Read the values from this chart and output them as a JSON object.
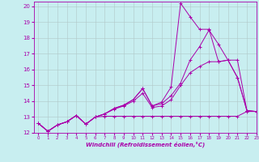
{
  "xlabel": "Windchill (Refroidissement éolien,°C)",
  "xlim": [
    -0.5,
    23
  ],
  "ylim": [
    12,
    20.3
  ],
  "xticks": [
    0,
    1,
    2,
    3,
    4,
    5,
    6,
    7,
    8,
    9,
    10,
    11,
    12,
    13,
    14,
    15,
    16,
    17,
    18,
    19,
    20,
    21,
    22,
    23
  ],
  "yticks": [
    12,
    13,
    14,
    15,
    16,
    17,
    18,
    19,
    20
  ],
  "background_color": "#c8eef0",
  "grid_color": "#b0c8c8",
  "line_color": "#aa00aa",
  "lines": [
    {
      "x": [
        0,
        1,
        2,
        3,
        4,
        5,
        6,
        7,
        8,
        9,
        10,
        11,
        12,
        13,
        14,
        15,
        16,
        17,
        18,
        19,
        20,
        21,
        22,
        23
      ],
      "y": [
        12.6,
        12.1,
        12.5,
        12.7,
        13.1,
        12.55,
        13.0,
        13.05,
        13.05,
        13.05,
        13.05,
        13.05,
        13.05,
        13.05,
        13.05,
        13.05,
        13.05,
        13.05,
        13.05,
        13.05,
        13.05,
        13.05,
        13.35,
        13.35
      ]
    },
    {
      "x": [
        0,
        1,
        2,
        3,
        4,
        5,
        6,
        7,
        8,
        9,
        10,
        11,
        12,
        13,
        14,
        15,
        16,
        17,
        18,
        19,
        20,
        21,
        22,
        23
      ],
      "y": [
        12.6,
        12.1,
        12.5,
        12.7,
        13.1,
        12.55,
        13.0,
        13.2,
        13.5,
        13.7,
        14.0,
        14.5,
        13.6,
        13.7,
        14.1,
        15.0,
        15.8,
        16.2,
        16.5,
        16.5,
        16.6,
        16.6,
        13.4,
        13.35
      ]
    },
    {
      "x": [
        0,
        1,
        2,
        3,
        4,
        5,
        6,
        7,
        8,
        9,
        10,
        11,
        12,
        13,
        14,
        15,
        16,
        17,
        18,
        19,
        20,
        21,
        22,
        23
      ],
      "y": [
        12.6,
        12.1,
        12.5,
        12.7,
        13.1,
        12.55,
        13.0,
        13.2,
        13.55,
        13.75,
        14.1,
        14.8,
        13.7,
        13.85,
        14.35,
        15.15,
        16.6,
        17.45,
        18.5,
        17.6,
        16.6,
        15.5,
        13.4,
        13.35
      ]
    },
    {
      "x": [
        0,
        1,
        2,
        3,
        4,
        5,
        6,
        7,
        8,
        9,
        10,
        11,
        12,
        13,
        14,
        15,
        16,
        17,
        18,
        19,
        20,
        21,
        22,
        23
      ],
      "y": [
        12.6,
        12.1,
        12.5,
        12.7,
        13.1,
        12.55,
        13.0,
        13.2,
        13.55,
        13.75,
        14.1,
        14.8,
        13.7,
        13.95,
        14.9,
        20.2,
        19.35,
        18.55,
        18.55,
        16.5,
        16.6,
        15.5,
        13.4,
        13.35
      ]
    }
  ]
}
